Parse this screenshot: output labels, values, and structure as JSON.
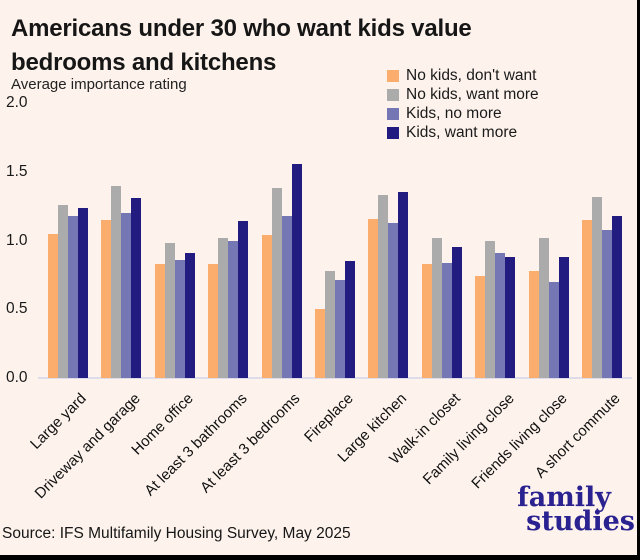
{
  "page": {
    "background": "#FDF3EC",
    "edge_color": "#000000"
  },
  "header": {
    "title_line1": "Americans under 30 who want kids value",
    "title_line2": "bedrooms and kitchens",
    "subtitle": "Average importance rating"
  },
  "chart_data": {
    "type": "bar",
    "title": "Americans under 30 who want kids value bedrooms and kitchens",
    "ylabel": "Average importance rating",
    "xlabel": "",
    "ylim": [
      0,
      2.0
    ],
    "yticks": [
      2.0,
      1.5,
      1.0,
      0.5,
      0.0
    ],
    "grid": false,
    "legend_position": "top-right-inside",
    "categories": [
      "Large yard",
      "Driveway and garage",
      "Home office",
      "At least 3 bathrooms",
      "At least 3 bedrooms",
      "Fireplace",
      "Large kitchen",
      "Walk-in closet",
      "Family living close",
      "Friends living close",
      "A short commute"
    ],
    "series": [
      {
        "name": "No kids, don't want",
        "color": "#FBAD6E",
        "values": [
          1.05,
          1.15,
          0.83,
          0.83,
          1.04,
          0.5,
          1.16,
          0.83,
          0.74,
          0.78,
          1.15
        ]
      },
      {
        "name": "No kids, want more",
        "color": "#ABABAB",
        "values": [
          1.26,
          1.4,
          0.98,
          1.02,
          1.38,
          0.78,
          1.33,
          1.02,
          1.0,
          1.02,
          1.32
        ]
      },
      {
        "name": "Kids, no more",
        "color": "#7577B5",
        "values": [
          1.18,
          1.2,
          0.86,
          1.0,
          1.18,
          0.71,
          1.13,
          0.84,
          0.91,
          0.7,
          1.08
        ]
      },
      {
        "name": "Kids, want more",
        "color": "#221B80",
        "values": [
          1.24,
          1.31,
          0.91,
          1.14,
          1.56,
          0.85,
          1.35,
          0.95,
          0.88,
          0.88,
          1.18
        ]
      }
    ],
    "baseline_color": "#DDDCEA"
  },
  "footer": {
    "source": "Source: IFS Multifamily Housing Survey, May 2025",
    "logo_line1": "family",
    "logo_line2": "studies",
    "logo_color": "#2B2291"
  }
}
